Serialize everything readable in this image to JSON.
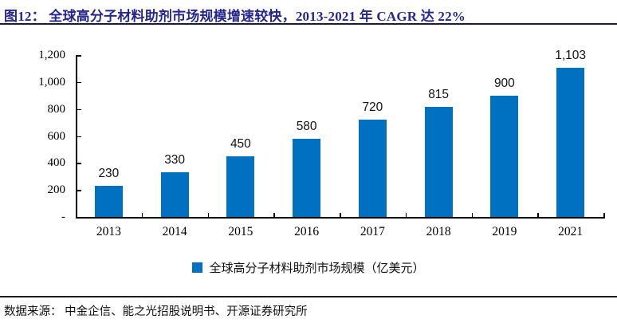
{
  "header": {
    "title": "图12： 全球高分子材料助剂市场规模增速较快，2013-2021 年 CAGR 达 22%"
  },
  "legend": {
    "label": "全球高分子材料助剂市场规模（亿美元）",
    "swatch_color": "#0070C0"
  },
  "footer": {
    "source": "数据来源： 中金企信、能之光招股说明书、开源证券研究所"
  },
  "colors": {
    "bar": "#0070C0",
    "title": "#26268C",
    "axis": "#000000"
  },
  "chart_data": {
    "type": "bar",
    "title": "图12： 全球高分子材料助剂市场规模增速较快，2013-2021 年 CAGR 达 22%",
    "categories": [
      "2013",
      "2014",
      "2015",
      "2016",
      "2017",
      "2018",
      "2019",
      "2021"
    ],
    "values": [
      230,
      330,
      450,
      580,
      720,
      815,
      900,
      1103
    ],
    "value_labels": [
      "230",
      "330",
      "450",
      "580",
      "720",
      "815",
      "900",
      "1,103"
    ],
    "series_name": "全球高分子材料助剂市场规模（亿美元）",
    "xlabel": "",
    "ylabel": "",
    "ylim": [
      0,
      1200
    ],
    "ytick_values": [
      0,
      200,
      400,
      600,
      800,
      1000,
      1200
    ],
    "ytick_labels": [
      "-",
      "200",
      "400",
      "600",
      "800",
      "1,000",
      "1,200"
    ],
    "grid": false,
    "legend_position": "bottom",
    "bar_color": "#0070C0"
  }
}
